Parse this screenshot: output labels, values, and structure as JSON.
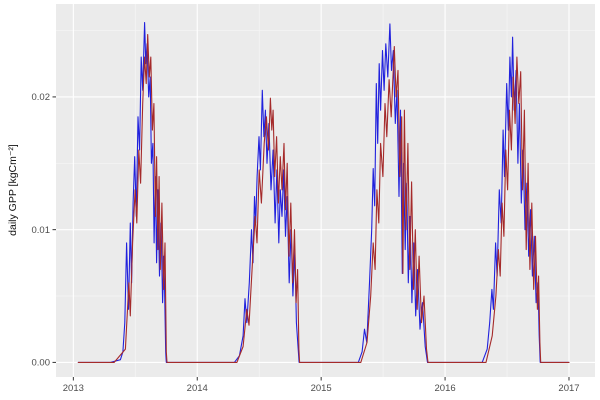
{
  "figure": {
    "background": "#ffffff",
    "kind": "ggplot-line-chart"
  },
  "chart_data": {
    "type": "line",
    "title": "",
    "xlabel": "",
    "ylabel": "daily GPP [kgCm⁻²]",
    "legend": "none",
    "grid": "major+minor",
    "panel_bg": "#ebebeb",
    "grid_major_color": "#ffffff",
    "grid_minor_color": "#f6f6f6",
    "tick_mark_color": "#333333",
    "tick_label_color": "#4d4d4d",
    "axis_title_color": "#111111",
    "xlim": [
      2012.86,
      2017.21
    ],
    "ylim": [
      -0.0011,
      0.027
    ],
    "x_ticks": [
      {
        "label": "2013",
        "value": 2013
      },
      {
        "label": "2014",
        "value": 2014
      },
      {
        "label": "2015",
        "value": 2015
      },
      {
        "label": "2016",
        "value": 2016
      },
      {
        "label": "2017",
        "value": 2017
      }
    ],
    "x_minor": [
      2013.5,
      2014.5,
      2015.5,
      2016.5
    ],
    "y_ticks": [
      {
        "label": "0.00",
        "value": 0.0
      },
      {
        "label": "0.01",
        "value": 0.01
      },
      {
        "label": "0.02",
        "value": 0.02
      }
    ],
    "y_minor": [
      0.005,
      0.015,
      0.025
    ],
    "series": [
      {
        "name": "blue-series",
        "color": "#2121dd",
        "width": 1.1,
        "points": [
          [
            2013.04,
            0
          ],
          [
            2013.3,
            0
          ],
          [
            2013.38,
            0.0002
          ],
          [
            2013.4,
            0.0008
          ],
          [
            2013.415,
            0.003
          ],
          [
            2013.43,
            0.009
          ],
          [
            2013.445,
            0.004
          ],
          [
            2013.46,
            0.0105
          ],
          [
            2013.47,
            0.006
          ],
          [
            2013.482,
            0.012
          ],
          [
            2013.495,
            0.0155
          ],
          [
            2013.508,
            0.011
          ],
          [
            2013.522,
            0.0185
          ],
          [
            2013.535,
            0.016
          ],
          [
            2013.548,
            0.023
          ],
          [
            2013.56,
            0.0205
          ],
          [
            2013.575,
            0.0256
          ],
          [
            2013.585,
            0.0225
          ],
          [
            2013.595,
            0.024
          ],
          [
            2013.608,
            0.02
          ],
          [
            2013.62,
            0.0215
          ],
          [
            2013.63,
            0.015
          ],
          [
            2013.642,
            0.0165
          ],
          [
            2013.652,
            0.009
          ],
          [
            2013.662,
            0.014
          ],
          [
            2013.672,
            0.0075
          ],
          [
            2013.682,
            0.013
          ],
          [
            2013.695,
            0.0065
          ],
          [
            2013.708,
            0.0105
          ],
          [
            2013.72,
            0.0045
          ],
          [
            2013.732,
            0.008
          ],
          [
            2013.745,
            0.0008
          ],
          [
            2013.75,
            0
          ],
          [
            2014.3,
            0
          ],
          [
            2014.34,
            0.0005
          ],
          [
            2014.37,
            0.002
          ],
          [
            2014.385,
            0.0048
          ],
          [
            2014.4,
            0.003
          ],
          [
            2014.42,
            0.006
          ],
          [
            2014.438,
            0.01
          ],
          [
            2014.45,
            0.0075
          ],
          [
            2014.462,
            0.0125
          ],
          [
            2014.472,
            0.0105
          ],
          [
            2014.483,
            0.014
          ],
          [
            2014.498,
            0.017
          ],
          [
            2014.51,
            0.0145
          ],
          [
            2014.525,
            0.0205
          ],
          [
            2014.538,
            0.017
          ],
          [
            2014.55,
            0.019
          ],
          [
            2014.563,
            0.015
          ],
          [
            2014.578,
            0.018
          ],
          [
            2014.595,
            0.013
          ],
          [
            2014.612,
            0.016
          ],
          [
            2014.628,
            0.0105
          ],
          [
            2014.643,
            0.0145
          ],
          [
            2014.658,
            0.009
          ],
          [
            2014.67,
            0.013
          ],
          [
            2014.684,
            0.011
          ],
          [
            2014.698,
            0.0145
          ],
          [
            2014.712,
            0.0095
          ],
          [
            2014.726,
            0.0125
          ],
          [
            2014.742,
            0.006
          ],
          [
            2014.757,
            0.01
          ],
          [
            2014.772,
            0.005
          ],
          [
            2014.787,
            0.0085
          ],
          [
            2014.8,
            0.003
          ],
          [
            2014.815,
            0.001
          ],
          [
            2014.822,
            0
          ],
          [
            2015.3,
            0
          ],
          [
            2015.33,
            0.0008
          ],
          [
            2015.35,
            0.0025
          ],
          [
            2015.368,
            0.0015
          ],
          [
            2015.39,
            0.006
          ],
          [
            2015.408,
            0.01
          ],
          [
            2015.42,
            0.0146
          ],
          [
            2015.432,
            0.0118
          ],
          [
            2015.445,
            0.021
          ],
          [
            2015.456,
            0.0165
          ],
          [
            2015.468,
            0.0225
          ],
          [
            2015.48,
            0.019
          ],
          [
            2015.495,
            0.0235
          ],
          [
            2015.508,
            0.0205
          ],
          [
            2015.522,
            0.024
          ],
          [
            2015.538,
            0.0215
          ],
          [
            2015.555,
            0.0255
          ],
          [
            2015.568,
            0.022
          ],
          [
            2015.582,
            0.0235
          ],
          [
            2015.598,
            0.018
          ],
          [
            2015.612,
            0.0205
          ],
          [
            2015.628,
            0.0125
          ],
          [
            2015.64,
            0.019
          ],
          [
            2015.655,
            0.0067
          ],
          [
            2015.665,
            0.015
          ],
          [
            2015.678,
            0.0085
          ],
          [
            2015.69,
            0.0135
          ],
          [
            2015.703,
            0.006
          ],
          [
            2015.717,
            0.011
          ],
          [
            2015.732,
            0.0045
          ],
          [
            2015.748,
            0.009
          ],
          [
            2015.763,
            0.0035
          ],
          [
            2015.778,
            0.007
          ],
          [
            2015.798,
            0.0025
          ],
          [
            2015.818,
            0.0045
          ],
          [
            2015.84,
            0.0012
          ],
          [
            2015.858,
            0
          ],
          [
            2016.3,
            0
          ],
          [
            2016.34,
            0.001
          ],
          [
            2016.36,
            0.003
          ],
          [
            2016.378,
            0.0055
          ],
          [
            2016.39,
            0.004
          ],
          [
            2016.408,
            0.009
          ],
          [
            2016.42,
            0.0065
          ],
          [
            2016.438,
            0.013
          ],
          [
            2016.453,
            0.0105
          ],
          [
            2016.468,
            0.0175
          ],
          [
            2016.48,
            0.014
          ],
          [
            2016.497,
            0.021
          ],
          [
            2016.51,
            0.0175
          ],
          [
            2016.523,
            0.023
          ],
          [
            2016.535,
            0.02
          ],
          [
            2016.545,
            0.0245
          ],
          [
            2016.558,
            0.019
          ],
          [
            2016.573,
            0.022
          ],
          [
            2016.588,
            0.015
          ],
          [
            2016.6,
            0.0195
          ],
          [
            2016.615,
            0.012
          ],
          [
            2016.63,
            0.016
          ],
          [
            2016.645,
            0.01
          ],
          [
            2016.66,
            0.0135
          ],
          [
            2016.675,
            0.008
          ],
          [
            2016.69,
            0.0115
          ],
          [
            2016.705,
            0.0065
          ],
          [
            2016.72,
            0.0095
          ],
          [
            2016.735,
            0.0045
          ],
          [
            2016.75,
            0.006
          ],
          [
            2016.76,
            0.002
          ],
          [
            2016.768,
            0
          ],
          [
            2017.0,
            0
          ]
        ]
      },
      {
        "name": "darkred-series",
        "color": "#a52a2a",
        "width": 1.1,
        "points": [
          [
            2013.04,
            0
          ],
          [
            2013.33,
            0
          ],
          [
            2013.42,
            0.001
          ],
          [
            2013.448,
            0.006
          ],
          [
            2013.46,
            0.0035
          ],
          [
            2013.478,
            0.009
          ],
          [
            2013.498,
            0.013
          ],
          [
            2013.512,
            0.0105
          ],
          [
            2013.528,
            0.016
          ],
          [
            2013.543,
            0.0135
          ],
          [
            2013.56,
            0.0195
          ],
          [
            2013.575,
            0.023
          ],
          [
            2013.588,
            0.021
          ],
          [
            2013.6,
            0.0247
          ],
          [
            2013.613,
            0.0215
          ],
          [
            2013.625,
            0.023
          ],
          [
            2013.638,
            0.0175
          ],
          [
            2013.65,
            0.0195
          ],
          [
            2013.662,
            0.011
          ],
          [
            2013.672,
            0.0155
          ],
          [
            2013.682,
            0.0085
          ],
          [
            2013.692,
            0.014
          ],
          [
            2013.702,
            0.007
          ],
          [
            2013.715,
            0.012
          ],
          [
            2013.728,
            0.0055
          ],
          [
            2013.74,
            0.009
          ],
          [
            2013.75,
            0.0008
          ],
          [
            2013.756,
            0
          ],
          [
            2014.32,
            0
          ],
          [
            2014.37,
            0.0012
          ],
          [
            2014.4,
            0.004
          ],
          [
            2014.418,
            0.0028
          ],
          [
            2014.448,
            0.008
          ],
          [
            2014.468,
            0.011
          ],
          [
            2014.482,
            0.009
          ],
          [
            2014.5,
            0.0145
          ],
          [
            2014.518,
            0.012
          ],
          [
            2014.54,
            0.0165
          ],
          [
            2014.558,
            0.0185
          ],
          [
            2014.575,
            0.016
          ],
          [
            2014.59,
            0.0199
          ],
          [
            2014.602,
            0.0175
          ],
          [
            2014.612,
            0.019
          ],
          [
            2014.625,
            0.014
          ],
          [
            2014.64,
            0.017
          ],
          [
            2014.655,
            0.012
          ],
          [
            2014.67,
            0.0155
          ],
          [
            2014.684,
            0.013
          ],
          [
            2014.7,
            0.0165
          ],
          [
            2014.712,
            0.0115
          ],
          [
            2014.726,
            0.015
          ],
          [
            2014.74,
            0.008
          ],
          [
            2014.755,
            0.012
          ],
          [
            2014.77,
            0.006
          ],
          [
            2014.785,
            0.01
          ],
          [
            2014.798,
            0.0045
          ],
          [
            2014.81,
            0.007
          ],
          [
            2014.82,
            0.001
          ],
          [
            2014.826,
            0
          ],
          [
            2015.32,
            0
          ],
          [
            2015.37,
            0.0015
          ],
          [
            2015.4,
            0.005
          ],
          [
            2015.42,
            0.009
          ],
          [
            2015.435,
            0.007
          ],
          [
            2015.45,
            0.013
          ],
          [
            2015.465,
            0.0105
          ],
          [
            2015.48,
            0.0165
          ],
          [
            2015.498,
            0.014
          ],
          [
            2015.515,
            0.0195
          ],
          [
            2015.53,
            0.017
          ],
          [
            2015.548,
            0.0213
          ],
          [
            2015.565,
            0.0185
          ],
          [
            2015.59,
            0.0238
          ],
          [
            2015.605,
            0.02
          ],
          [
            2015.62,
            0.022
          ],
          [
            2015.635,
            0.014
          ],
          [
            2015.65,
            0.0185
          ],
          [
            2015.66,
            0.0067
          ],
          [
            2015.672,
            0.019
          ],
          [
            2015.685,
            0.01
          ],
          [
            2015.7,
            0.0165
          ],
          [
            2015.715,
            0.007
          ],
          [
            2015.73,
            0.0136
          ],
          [
            2015.745,
            0.0055
          ],
          [
            2015.76,
            0.01
          ],
          [
            2015.775,
            0.004
          ],
          [
            2015.79,
            0.008
          ],
          [
            2015.81,
            0.003
          ],
          [
            2015.83,
            0.005
          ],
          [
            2015.85,
            0.001
          ],
          [
            2015.862,
            0
          ],
          [
            2016.33,
            0
          ],
          [
            2016.38,
            0.002
          ],
          [
            2016.41,
            0.005
          ],
          [
            2016.43,
            0.0085
          ],
          [
            2016.445,
            0.0065
          ],
          [
            2016.46,
            0.012
          ],
          [
            2016.475,
            0.0095
          ],
          [
            2016.49,
            0.016
          ],
          [
            2016.505,
            0.013
          ],
          [
            2016.52,
            0.019
          ],
          [
            2016.535,
            0.016
          ],
          [
            2016.55,
            0.0215
          ],
          [
            2016.565,
            0.018
          ],
          [
            2016.58,
            0.023
          ],
          [
            2016.595,
            0.0195
          ],
          [
            2016.61,
            0.0219
          ],
          [
            2016.625,
            0.013
          ],
          [
            2016.64,
            0.019
          ],
          [
            2016.655,
            0.0085
          ],
          [
            2016.67,
            0.015
          ],
          [
            2016.685,
            0.007
          ],
          [
            2016.7,
            0.012
          ],
          [
            2016.715,
            0.0055
          ],
          [
            2016.73,
            0.0095
          ],
          [
            2016.745,
            0.004
          ],
          [
            2016.755,
            0.0065
          ],
          [
            2016.765,
            0.0015
          ],
          [
            2016.772,
            0
          ],
          [
            2017.0,
            0
          ]
        ]
      }
    ]
  }
}
